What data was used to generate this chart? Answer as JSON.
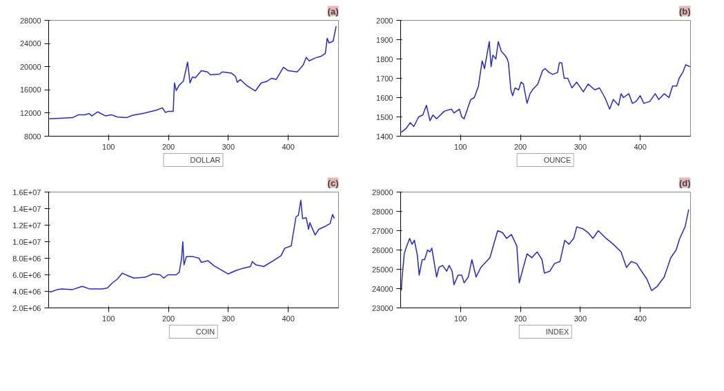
{
  "chart_data": [
    {
      "type": "line",
      "title": "(a)",
      "xlim": [
        0,
        484
      ],
      "xticks": [
        100,
        200,
        300,
        400
      ],
      "ylim": [
        8000,
        28000
      ],
      "yticks": [
        8000,
        12000,
        16000,
        20000,
        24000,
        28000
      ],
      "legend": "bottom",
      "grid": false,
      "series": [
        {
          "name": "DOLLAR",
          "color": "#2424d8",
          "x": [
            1,
            20,
            40,
            50,
            60,
            68,
            72,
            82,
            95,
            105,
            115,
            130,
            140,
            160,
            180,
            190,
            195,
            200,
            208,
            210,
            213,
            218,
            225,
            232,
            236,
            240,
            245,
            255,
            265,
            270,
            285,
            290,
            305,
            312,
            315,
            320,
            330,
            345,
            355,
            365,
            372,
            380,
            392,
            400,
            415,
            425,
            430,
            435,
            445,
            455,
            462,
            465,
            468,
            475,
            480
          ],
          "values": [
            11000,
            11100,
            11200,
            11700,
            11700,
            11900,
            11500,
            12200,
            11500,
            11700,
            11300,
            11200,
            11600,
            12000,
            12500,
            12900,
            12100,
            12300,
            12300,
            17200,
            15900,
            16800,
            17500,
            20800,
            17200,
            18200,
            18100,
            19300,
            19100,
            18600,
            18700,
            19100,
            18900,
            18300,
            17300,
            17800,
            16800,
            15800,
            17200,
            17500,
            18000,
            17800,
            19900,
            19300,
            19100,
            20300,
            21600,
            21000,
            21500,
            21800,
            22300,
            24900,
            24100,
            24400,
            27000
          ]
        }
      ]
    },
    {
      "type": "line",
      "title": "(b)",
      "xlim": [
        0,
        484
      ],
      "xticks": [
        100,
        200,
        300,
        400
      ],
      "ylim": [
        1400,
        2000
      ],
      "yticks": [
        1400,
        1500,
        1600,
        1700,
        1800,
        1900,
        2000
      ],
      "legend": "bottom",
      "grid": false,
      "series": [
        {
          "name": "OUNCE",
          "color": "#2424d8",
          "x": [
            1,
            9,
            16,
            22,
            30,
            37,
            43,
            49,
            54,
            60,
            73,
            85,
            89,
            98,
            102,
            106,
            117,
            123,
            130,
            136,
            140,
            148,
            151,
            154,
            159,
            163,
            168,
            174,
            178,
            180,
            184,
            187,
            191,
            197,
            201,
            205,
            211,
            216,
            220,
            229,
            237,
            241,
            248,
            254,
            262,
            265,
            269,
            273,
            279,
            286,
            294,
            305,
            313,
            324,
            332,
            341,
            349,
            355,
            364,
            368,
            372,
            381,
            387,
            393,
            400,
            406,
            416,
            425,
            431,
            440,
            448,
            454,
            461,
            465,
            471,
            476,
            483
          ],
          "values": [
            1420,
            1440,
            1470,
            1450,
            1500,
            1510,
            1560,
            1480,
            1510,
            1490,
            1530,
            1540,
            1520,
            1540,
            1500,
            1490,
            1590,
            1600,
            1660,
            1790,
            1750,
            1890,
            1760,
            1820,
            1800,
            1890,
            1840,
            1820,
            1800,
            1780,
            1640,
            1610,
            1650,
            1640,
            1680,
            1670,
            1570,
            1620,
            1640,
            1670,
            1740,
            1750,
            1730,
            1720,
            1730,
            1780,
            1780,
            1700,
            1700,
            1650,
            1680,
            1630,
            1670,
            1640,
            1650,
            1600,
            1540,
            1590,
            1560,
            1620,
            1600,
            1620,
            1570,
            1580,
            1610,
            1570,
            1580,
            1620,
            1590,
            1620,
            1600,
            1660,
            1660,
            1700,
            1730,
            1770,
            1760
          ]
        }
      ]
    },
    {
      "type": "line",
      "title": "(c)",
      "xlim": [
        0,
        484
      ],
      "xticks": [
        100,
        200,
        300,
        400
      ],
      "ylim": [
        2000000,
        16000000
      ],
      "yticks": [
        {
          "value": 2000000,
          "label": "2.0E+06"
        },
        {
          "value": 4000000,
          "label": "4.0E+06"
        },
        {
          "value": 6000000,
          "label": "6.0E+06"
        },
        {
          "value": 8000000,
          "label": "8.0E+06"
        },
        {
          "value": 10000000,
          "label": "1.0E+07"
        },
        {
          "value": 12000000,
          "label": "1.2E+07"
        },
        {
          "value": 14000000,
          "label": "1.4E+07"
        },
        {
          "value": 16000000,
          "label": "1.6E+07"
        }
      ],
      "legend": "bottom",
      "grid": false,
      "series": [
        {
          "name": "COIN",
          "color": "#2424d8",
          "x": [
            2,
            14,
            22,
            39,
            56,
            68,
            89,
            98,
            106,
            115,
            123,
            132,
            142,
            161,
            174,
            186,
            192,
            199,
            213,
            218,
            222,
            224,
            226,
            230,
            241,
            251,
            255,
            266,
            276,
            300,
            312,
            325,
            337,
            340,
            346,
            359,
            375,
            388,
            394,
            405,
            413,
            417,
            421,
            424,
            430,
            434,
            436,
            445,
            451,
            463,
            470,
            474,
            477
          ],
          "values": [
            3900000,
            4200000,
            4300000,
            4200000,
            4600000,
            4300000,
            4300000,
            4400000,
            5000000,
            5500000,
            6200000,
            5900000,
            5600000,
            5700000,
            6100000,
            6000000,
            5600000,
            6000000,
            6000000,
            6300000,
            8000000,
            10000000,
            7200000,
            8200000,
            8200000,
            8000000,
            7500000,
            7700000,
            7100000,
            6100000,
            6500000,
            6800000,
            7000000,
            7600000,
            7200000,
            7000000,
            7700000,
            8300000,
            9200000,
            9500000,
            13000000,
            13200000,
            15000000,
            12800000,
            12900000,
            11500000,
            12300000,
            10800000,
            11500000,
            11900000,
            12200000,
            13300000,
            12800000
          ]
        }
      ]
    },
    {
      "type": "line",
      "title": "(d)",
      "xlim": [
        0,
        484
      ],
      "xticks": [
        100,
        200,
        300,
        400
      ],
      "ylim": [
        23000,
        29000
      ],
      "yticks": [
        23000,
        24000,
        25000,
        26000,
        27000,
        28000,
        29000
      ],
      "legend": "bottom",
      "grid": false,
      "series": [
        {
          "name": "INDEX",
          "color": "#2424d8",
          "x": [
            1,
            2,
            6,
            9,
            15,
            19,
            23,
            28,
            31,
            36,
            40,
            45,
            49,
            52,
            60,
            64,
            70,
            77,
            81,
            86,
            89,
            96,
            102,
            106,
            113,
            119,
            126,
            134,
            149,
            162,
            170,
            177,
            185,
            194,
            198,
            204,
            211,
            219,
            228,
            236,
            240,
            249,
            257,
            266,
            274,
            281,
            289,
            294,
            304,
            313,
            321,
            330,
            343,
            355,
            368,
            377,
            385,
            394,
            400,
            411,
            419,
            428,
            440,
            451,
            460,
            466,
            475,
            481
          ],
          "values": [
            23900,
            24400,
            25800,
            26100,
            26600,
            26300,
            26500,
            25700,
            24700,
            25500,
            25500,
            26000,
            25900,
            26100,
            24600,
            25100,
            25200,
            24900,
            25200,
            24900,
            24200,
            24700,
            24700,
            24300,
            24600,
            25500,
            24600,
            25100,
            25600,
            27000,
            26900,
            26600,
            26800,
            26200,
            24300,
            25000,
            25800,
            25600,
            25900,
            25500,
            24800,
            24900,
            25300,
            25400,
            26500,
            26300,
            26600,
            27200,
            27100,
            26900,
            26600,
            27000,
            26600,
            26300,
            25900,
            25100,
            25400,
            25300,
            25000,
            24500,
            23900,
            24100,
            24600,
            25600,
            26000,
            26600,
            27200,
            28100
          ]
        }
      ]
    }
  ]
}
